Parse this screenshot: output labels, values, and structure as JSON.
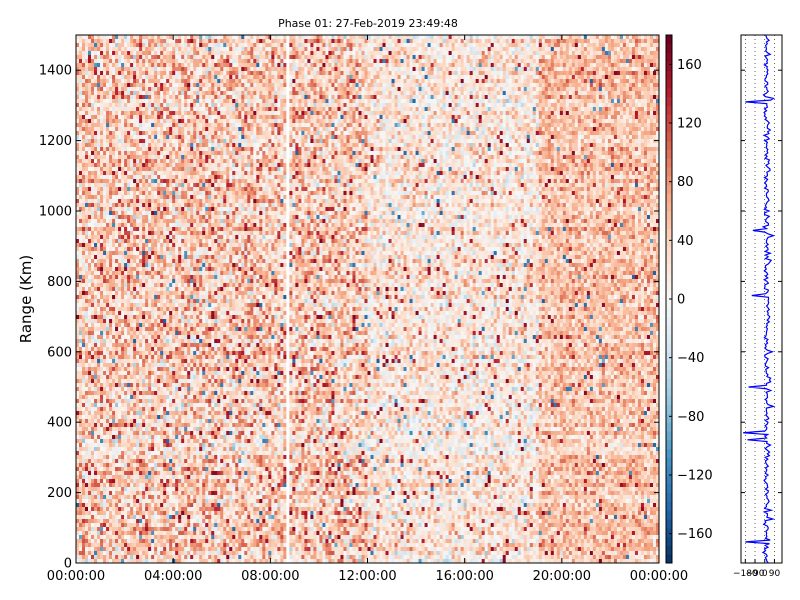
{
  "chart_data": [
    {
      "type": "heatmap",
      "title": "Phase 01: 27-Feb-2019 23:49:48",
      "xlabel": "",
      "ylabel": "Range (Km)",
      "x_ticks": [
        "00:00:00",
        "04:00:00",
        "08:00:00",
        "12:00:00",
        "16:00:00",
        "20:00:00",
        "00:00:00"
      ],
      "x_tick_hours": [
        0,
        4,
        8,
        12,
        16,
        20,
        24
      ],
      "xlim_hours": [
        0,
        24
      ],
      "y_ticks": [
        0,
        200,
        400,
        600,
        800,
        1000,
        1200,
        1400
      ],
      "ylim": [
        0,
        1500
      ],
      "colorbar": {
        "colormap": "RdBu_r",
        "range": [
          -180,
          180
        ],
        "ticks": [
          -160,
          -120,
          -80,
          -40,
          0,
          40,
          80,
          120,
          160
        ]
      },
      "grid": false,
      "typical_value": 40,
      "value_spread": 70,
      "gap_hour": 8.7,
      "calmer_period_hours": [
        12,
        19
      ],
      "warmer_period_hours": [
        19,
        24
      ]
    },
    {
      "type": "line",
      "title": "",
      "x_ticks": [
        -180,
        -90,
        0,
        90
      ],
      "x_tick_labels": [
        "−180",
        "−90",
        "0",
        "90"
      ],
      "xlim": [
        -220,
        160
      ],
      "ylim": [
        0,
        1500
      ],
      "grid": true,
      "color": "#0000ff",
      "mean_value": 20,
      "spike_profile": [
        {
          "y": 60,
          "x": -180
        },
        {
          "y": 125,
          "x": 75
        },
        {
          "y": 150,
          "x": 60
        },
        {
          "y": 350,
          "x": -160
        },
        {
          "y": 370,
          "x": -200
        },
        {
          "y": 445,
          "x": 80
        },
        {
          "y": 500,
          "x": -150
        },
        {
          "y": 600,
          "x": 70
        },
        {
          "y": 760,
          "x": -120
        },
        {
          "y": 860,
          "x": 60
        },
        {
          "y": 930,
          "x": 80
        },
        {
          "y": 945,
          "x": -110
        },
        {
          "y": 1310,
          "x": -180
        },
        {
          "y": 1320,
          "x": 80
        }
      ]
    }
  ]
}
